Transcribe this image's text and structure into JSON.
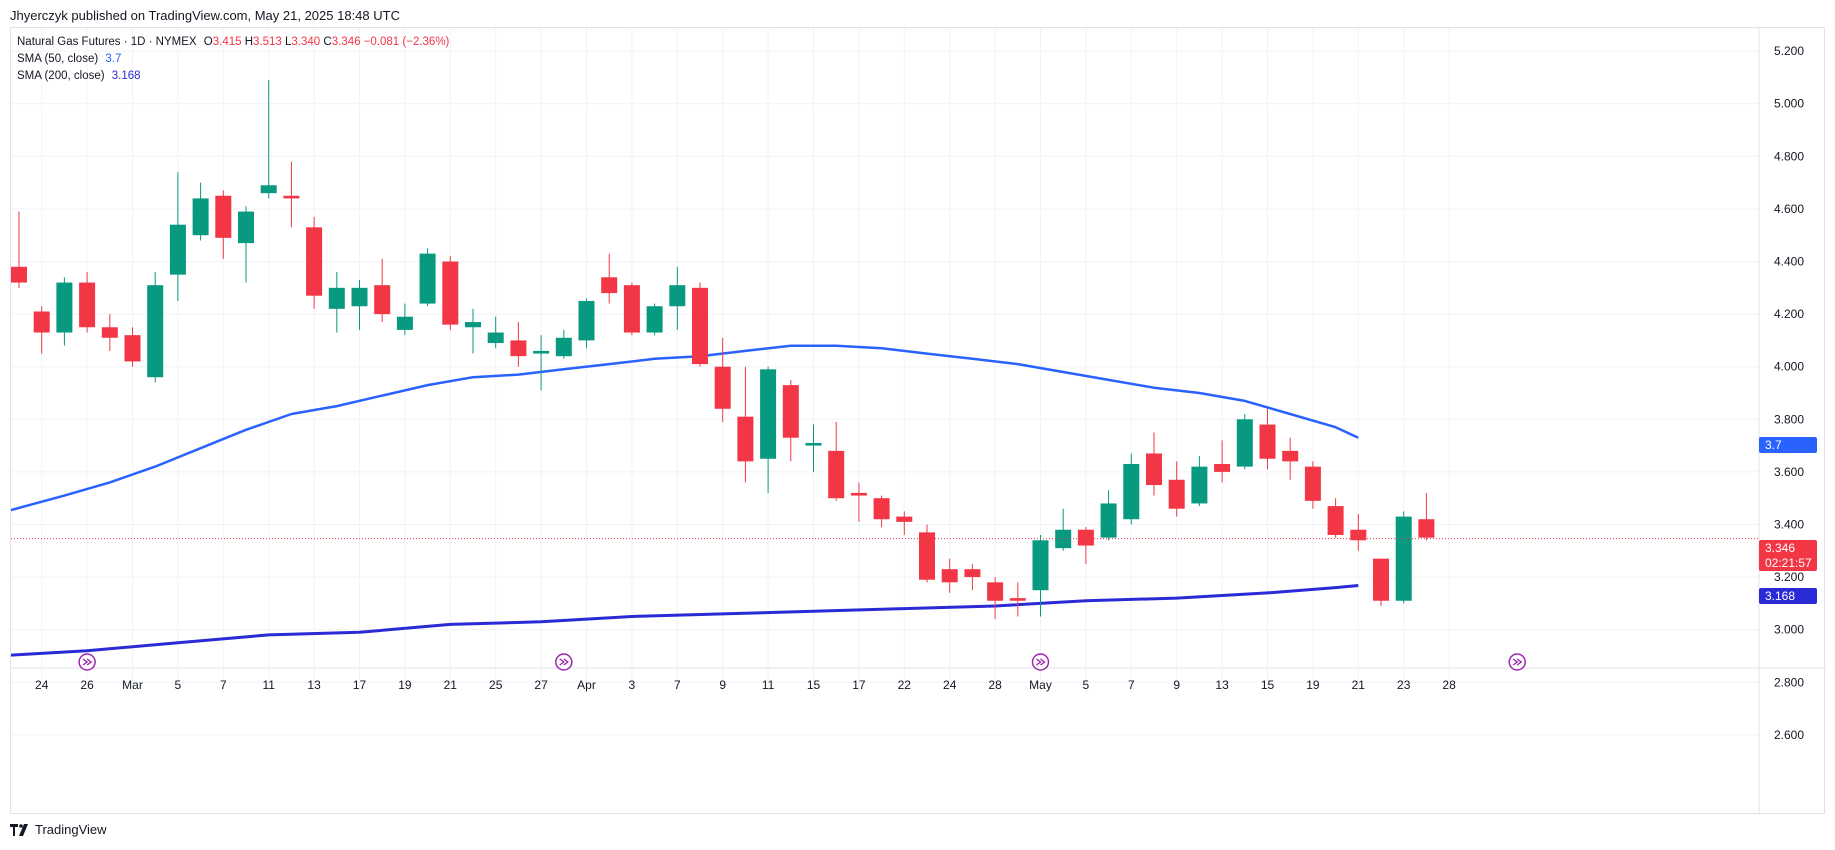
{
  "header": {
    "published": "Jhyerczyk published on TradingView.com, May 21, 2025 18:48 UTC"
  },
  "legend": {
    "symbol": "Natural Gas Futures · 1D · NYMEX",
    "open_key": "O",
    "open": "3.415",
    "high_key": "H",
    "high": "3.513",
    "low_key": "L",
    "low": "3.340",
    "close_key": "C",
    "close": "3.346",
    "change": "−0.081 (−2.36%)",
    "sma50_label": "SMA (50, close)",
    "sma50_value": "3.7",
    "sma200_label": "SMA (200, close)",
    "sma200_value": "3.168"
  },
  "price_tags": {
    "last": "3.346",
    "countdown": "02:21:57",
    "sma50": "3.7",
    "sma200": "3.168"
  },
  "footer": {
    "brand": "TradingView"
  },
  "colors": {
    "up": "#089981",
    "down": "#f23645",
    "sma50": "#2962ff",
    "sma200": "#2a2bd6",
    "grid": "#f0f3fa",
    "text": "#131722"
  },
  "icons": [
    "arrow-circle-icon",
    "tradingview-logo-icon"
  ],
  "chart_data": {
    "type": "candlestick",
    "title": "Natural Gas Futures · 1D · NYMEX",
    "y_ticks": [
      "2.600",
      "2.800",
      "3.000",
      "3.200",
      "3.400",
      "3.600",
      "3.800",
      "4.000",
      "4.200",
      "4.400",
      "4.600",
      "4.800",
      "5.000",
      "5.200"
    ],
    "ylim": [
      2.55,
      5.25
    ],
    "x_ticks": [
      {
        "i": 1,
        "label": "24"
      },
      {
        "i": 3,
        "label": "26"
      },
      {
        "i": 5,
        "label": "Mar"
      },
      {
        "i": 7,
        "label": "5"
      },
      {
        "i": 9,
        "label": "7"
      },
      {
        "i": 11,
        "label": "11"
      },
      {
        "i": 13,
        "label": "13"
      },
      {
        "i": 15,
        "label": "17"
      },
      {
        "i": 17,
        "label": "19"
      },
      {
        "i": 19,
        "label": "21"
      },
      {
        "i": 21,
        "label": "25"
      },
      {
        "i": 23,
        "label": "27"
      },
      {
        "i": 25,
        "label": "Apr"
      },
      {
        "i": 27,
        "label": "3"
      },
      {
        "i": 29,
        "label": "7"
      },
      {
        "i": 31,
        "label": "9"
      },
      {
        "i": 33,
        "label": "11"
      },
      {
        "i": 35,
        "label": "15"
      },
      {
        "i": 37,
        "label": "17"
      },
      {
        "i": 39,
        "label": "22"
      },
      {
        "i": 41,
        "label": "24"
      },
      {
        "i": 43,
        "label": "28"
      },
      {
        "i": 45,
        "label": "May"
      },
      {
        "i": 47,
        "label": "5"
      },
      {
        "i": 49,
        "label": "7"
      },
      {
        "i": 51,
        "label": "9"
      },
      {
        "i": 53,
        "label": "13"
      },
      {
        "i": 55,
        "label": "15"
      },
      {
        "i": 57,
        "label": "19"
      },
      {
        "i": 59,
        "label": "21"
      },
      {
        "i": 61,
        "label": "23"
      },
      {
        "i": 63,
        "label": "28"
      }
    ],
    "candles": [
      [
        4.38,
        4.59,
        4.3,
        4.32
      ],
      [
        4.21,
        4.23,
        4.05,
        4.13
      ],
      [
        4.13,
        4.34,
        4.08,
        4.32
      ],
      [
        4.32,
        4.36,
        4.13,
        4.15
      ],
      [
        4.15,
        4.2,
        4.06,
        4.11
      ],
      [
        4.12,
        4.15,
        4.0,
        4.02
      ],
      [
        3.96,
        4.36,
        3.94,
        4.31
      ],
      [
        4.35,
        4.74,
        4.25,
        4.54
      ],
      [
        4.5,
        4.7,
        4.48,
        4.64
      ],
      [
        4.65,
        4.67,
        4.41,
        4.49
      ],
      [
        4.47,
        4.61,
        4.32,
        4.59
      ],
      [
        4.66,
        5.09,
        4.64,
        4.69
      ],
      [
        4.65,
        4.78,
        4.53,
        4.64
      ],
      [
        4.53,
        4.57,
        4.22,
        4.27
      ],
      [
        4.22,
        4.36,
        4.13,
        4.3
      ],
      [
        4.23,
        4.33,
        4.14,
        4.3
      ],
      [
        4.31,
        4.41,
        4.17,
        4.2
      ],
      [
        4.14,
        4.24,
        4.12,
        4.19
      ],
      [
        4.24,
        4.45,
        4.23,
        4.43
      ],
      [
        4.4,
        4.42,
        4.14,
        4.16
      ],
      [
        4.15,
        4.22,
        4.05,
        4.17
      ],
      [
        4.09,
        4.19,
        4.07,
        4.13
      ],
      [
        4.1,
        4.17,
        4.0,
        4.04
      ],
      [
        4.05,
        4.12,
        3.91,
        4.06
      ],
      [
        4.04,
        4.14,
        4.03,
        4.11
      ],
      [
        4.1,
        4.26,
        4.07,
        4.25
      ],
      [
        4.34,
        4.43,
        4.24,
        4.28
      ],
      [
        4.31,
        4.32,
        4.12,
        4.13
      ],
      [
        4.13,
        4.24,
        4.12,
        4.23
      ],
      [
        4.23,
        4.38,
        4.14,
        4.31
      ],
      [
        4.3,
        4.32,
        4.0,
        4.01
      ],
      [
        4.0,
        4.11,
        3.79,
        3.84
      ],
      [
        3.81,
        4.0,
        3.56,
        3.64
      ],
      [
        3.65,
        4.0,
        3.52,
        3.99
      ],
      [
        3.93,
        3.95,
        3.64,
        3.73
      ],
      [
        3.7,
        3.78,
        3.6,
        3.71
      ],
      [
        3.68,
        3.79,
        3.49,
        3.5
      ],
      [
        3.52,
        3.56,
        3.41,
        3.51
      ],
      [
        3.5,
        3.51,
        3.39,
        3.42
      ],
      [
        3.43,
        3.45,
        3.36,
        3.41
      ],
      [
        3.37,
        3.4,
        3.18,
        3.19
      ],
      [
        3.23,
        3.27,
        3.14,
        3.18
      ],
      [
        3.23,
        3.25,
        3.15,
        3.2
      ],
      [
        3.18,
        3.2,
        3.04,
        3.11
      ],
      [
        3.12,
        3.18,
        3.05,
        3.11
      ],
      [
        3.15,
        3.36,
        3.05,
        3.34
      ],
      [
        3.31,
        3.46,
        3.3,
        3.38
      ],
      [
        3.38,
        3.39,
        3.25,
        3.32
      ],
      [
        3.35,
        3.53,
        3.34,
        3.48
      ],
      [
        3.42,
        3.67,
        3.4,
        3.63
      ],
      [
        3.67,
        3.75,
        3.51,
        3.55
      ],
      [
        3.57,
        3.64,
        3.43,
        3.46
      ],
      [
        3.48,
        3.66,
        3.47,
        3.62
      ],
      [
        3.63,
        3.72,
        3.56,
        3.6
      ],
      [
        3.62,
        3.82,
        3.61,
        3.8
      ],
      [
        3.78,
        3.84,
        3.61,
        3.65
      ],
      [
        3.68,
        3.73,
        3.57,
        3.64
      ],
      [
        3.62,
        3.64,
        3.46,
        3.49
      ],
      [
        3.47,
        3.5,
        3.35,
        3.36
      ],
      [
        3.38,
        3.44,
        3.3,
        3.34
      ],
      [
        3.27,
        3.27,
        3.09,
        3.11
      ],
      [
        3.11,
        3.45,
        3.1,
        3.43
      ],
      [
        3.42,
        3.52,
        3.34,
        3.35
      ]
    ],
    "sma50": [
      [
        -1,
        3.44
      ],
      [
        2,
        3.51
      ],
      [
        4,
        3.56
      ],
      [
        6,
        3.62
      ],
      [
        8,
        3.69
      ],
      [
        10,
        3.76
      ],
      [
        12,
        3.82
      ],
      [
        14,
        3.85
      ],
      [
        16,
        3.89
      ],
      [
        18,
        3.93
      ],
      [
        20,
        3.96
      ],
      [
        22,
        3.97
      ],
      [
        24,
        3.99
      ],
      [
        26,
        4.01
      ],
      [
        28,
        4.03
      ],
      [
        30,
        4.04
      ],
      [
        32,
        4.06
      ],
      [
        34,
        4.08
      ],
      [
        36,
        4.08
      ],
      [
        38,
        4.07
      ],
      [
        40,
        4.05
      ],
      [
        42,
        4.03
      ],
      [
        44,
        4.01
      ],
      [
        46,
        3.98
      ],
      [
        48,
        3.95
      ],
      [
        50,
        3.92
      ],
      [
        52,
        3.9
      ],
      [
        54,
        3.87
      ],
      [
        56,
        3.82
      ],
      [
        58,
        3.77
      ],
      [
        59,
        3.73
      ]
    ],
    "sma200": [
      [
        -1,
        2.9
      ],
      [
        3,
        2.92
      ],
      [
        7,
        2.95
      ],
      [
        11,
        2.98
      ],
      [
        15,
        2.99
      ],
      [
        19,
        3.02
      ],
      [
        23,
        3.03
      ],
      [
        27,
        3.05
      ],
      [
        31,
        3.06
      ],
      [
        35,
        3.07
      ],
      [
        39,
        3.08
      ],
      [
        43,
        3.09
      ],
      [
        47,
        3.11
      ],
      [
        51,
        3.12
      ],
      [
        55,
        3.14
      ],
      [
        58,
        3.16
      ],
      [
        59,
        3.168
      ]
    ],
    "last_price": 3.346,
    "marker_positions": [
      3,
      24,
      45,
      66
    ]
  }
}
